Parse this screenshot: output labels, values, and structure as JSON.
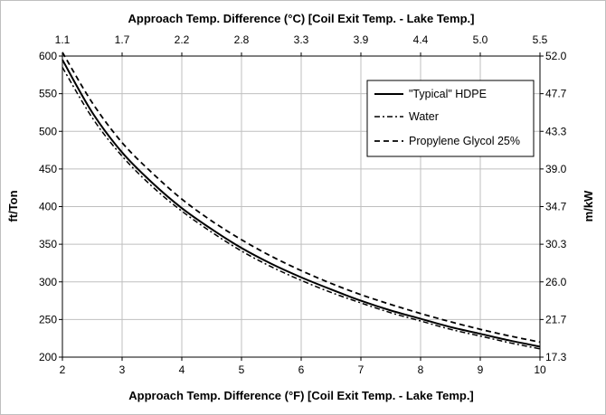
{
  "chart_data": {
    "type": "line",
    "top_xlabel": "Approach Temp. Difference (°C) [Coil Exit Temp. - Lake Temp.]",
    "xlabel": "Approach Temp. Difference (°F) [Coil Exit Temp. - Lake Temp.]",
    "ylabel": "ft/Ton",
    "right_ylabel": "m/kW",
    "xlim": [
      2,
      10
    ],
    "ylim": [
      200,
      600
    ],
    "x_ticks": [
      "2",
      "3",
      "4",
      "5",
      "6",
      "7",
      "8",
      "9",
      "10"
    ],
    "y_ticks": [
      "200",
      "250",
      "300",
      "350",
      "400",
      "450",
      "500",
      "550",
      "600"
    ],
    "top_x_ticks": [
      "1.1",
      "1.7",
      "2.2",
      "2.8",
      "3.3",
      "3.9",
      "4.4",
      "5.0",
      "5.5"
    ],
    "right_y_ticks": [
      "17.3",
      "21.7",
      "26.0",
      "30.3",
      "34.7",
      "39.0",
      "43.3",
      "47.7",
      "52.0"
    ],
    "grid": true,
    "legend_position": "top-right",
    "series": [
      {
        "name": "\"Typical\" HDPE",
        "style": "solid",
        "color": "#000000",
        "x": [
          2,
          2.5,
          3,
          3.5,
          4,
          4.5,
          5,
          5.5,
          6,
          6.5,
          7,
          7.5,
          8,
          8.5,
          9,
          9.5,
          10
        ],
        "y": [
          595,
          525,
          472,
          432,
          398,
          370,
          345,
          324,
          306,
          290,
          275,
          262,
          251,
          240,
          231,
          222,
          214
        ]
      },
      {
        "name": "Water",
        "style": "dashdot",
        "color": "#000000",
        "x": [
          2,
          2.5,
          3,
          3.5,
          4,
          4.5,
          5,
          5.5,
          6,
          6.5,
          7,
          7.5,
          8,
          8.5,
          9,
          9.5,
          10
        ],
        "y": [
          585,
          518,
          467,
          427,
          394,
          366,
          341,
          320,
          302,
          286,
          272,
          259,
          248,
          237,
          228,
          219,
          211
        ]
      },
      {
        "name": "Propylene Glycol 25%",
        "style": "dashed",
        "color": "#000000",
        "x": [
          2,
          2.5,
          3,
          3.5,
          4,
          4.5,
          5,
          5.5,
          6,
          6.5,
          7,
          7.5,
          8,
          8.5,
          9,
          9.5,
          10
        ],
        "y": [
          605,
          538,
          485,
          445,
          410,
          381,
          356,
          334,
          315,
          298,
          283,
          270,
          258,
          247,
          237,
          228,
          220
        ]
      }
    ]
  }
}
